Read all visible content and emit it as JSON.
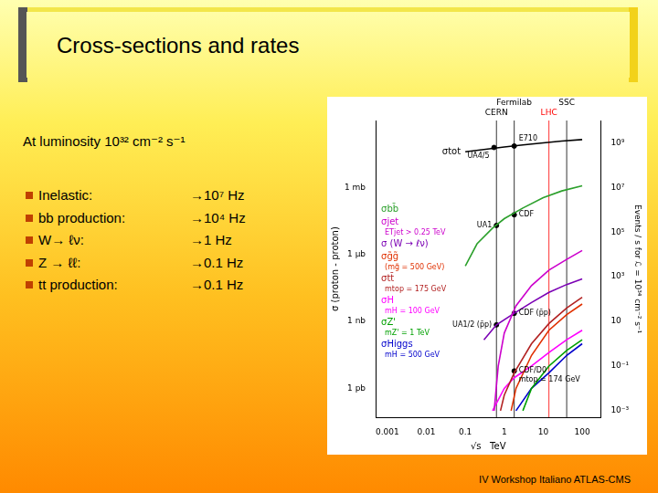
{
  "slide": {
    "title": "Cross-sections and rates",
    "intro": "At luminosity 10³² cm⁻² s⁻¹",
    "items": [
      {
        "label": "Inelastic:",
        "rate": "→10⁷ Hz"
      },
      {
        "label": "bb production:",
        "rate": "→10⁴ Hz"
      },
      {
        "label": "W→ ℓν:",
        "rate": "→1 Hz"
      },
      {
        "label": "Z → ℓℓ:",
        "rate": "→0.1 Hz"
      },
      {
        "label": "tt production:",
        "rate": "→0.1 Hz"
      }
    ],
    "footer": "IV Workshop Italiano ATLAS-CMS"
  },
  "chart_data": {
    "type": "line",
    "log": true,
    "grid": false,
    "x_label": "√s   TeV",
    "y_label": "σ (proton - proton)",
    "y2_label": "Events / s for ℒ = 10³⁴ cm⁻² s⁻¹",
    "xlim": [
      0.0005,
      300
    ],
    "xticks": [
      0.001,
      0.01,
      0.1,
      1,
      10,
      100
    ],
    "ylim": [
      5e-05,
      1000000000.0
    ],
    "yticks": [
      {
        "value": 1000000.0,
        "label": "1 mb"
      },
      {
        "value": 1000,
        "label": "1 μb"
      },
      {
        "value": 1,
        "label": "1 nb"
      },
      {
        "value": 0.001,
        "label": "1 pb"
      }
    ],
    "y2lim": [
      0.0005,
      10000000000.0
    ],
    "y2ticks": [
      {
        "value": 1000000000.0,
        "label": "10⁹"
      },
      {
        "value": 10000000.0,
        "label": "10⁷"
      },
      {
        "value": 100000.0,
        "label": "10⁵"
      },
      {
        "value": 1000,
        "label": "10³"
      },
      10,
      {
        "value": 0.1,
        "label": "10⁻¹"
      },
      {
        "value": 0.001,
        "label": "10⁻³"
      }
    ],
    "series": [
      {
        "name": "σtot",
        "color": "#000000",
        "x": [
          0.1,
          0.3,
          1,
          3,
          10,
          30,
          100
        ],
        "values": [
          40000000.0,
          50000000.0,
          65000000.0,
          80000000.0,
          100000000.0,
          120000000.0,
          140000000.0
        ]
      },
      {
        "name": "σbb̄",
        "color": "#2ca02c",
        "x": [
          0.1,
          0.2,
          0.5,
          1,
          3,
          10,
          30,
          100
        ],
        "values": [
          300,
          3000,
          15000,
          40000,
          120000,
          350000,
          700000,
          1200000
        ]
      },
      {
        "name": "σjet",
        "note": "ETjet > 0.25 TeV",
        "color": "#cc00cc",
        "x": [
          0.55,
          0.7,
          1,
          2,
          5,
          14,
          40,
          100
        ],
        "values": [
          0.0001,
          0.01,
          0.3,
          5,
          40,
          200,
          600,
          1500
        ]
      },
      {
        "name": "σ (W → ℓν)",
        "color": "#7b00b4",
        "x": [
          0.3,
          0.63,
          1.8,
          5,
          14,
          40,
          100
        ],
        "values": [
          0.15,
          0.7,
          2.3,
          7,
          20,
          45,
          80
        ]
      },
      {
        "name": "σg̃g̃",
        "note": "(mg̃ = 500 GeV)",
        "color": "#e03000",
        "x": [
          1.5,
          2,
          5,
          14,
          40,
          100
        ],
        "values": [
          0.0001,
          0.001,
          0.03,
          0.4,
          2,
          6
        ]
      },
      {
        "name": "σtt̄",
        "note": "mtop = 175 GeV",
        "color": "#b22222",
        "x": [
          0.8,
          1,
          1.8,
          5,
          14,
          40,
          100
        ],
        "values": [
          0.0001,
          0.0005,
          0.005,
          0.1,
          0.8,
          4,
          12
        ]
      },
      {
        "name": "σH",
        "note": "mH = 100 GeV",
        "color": "#ff00ff",
        "x": [
          0.5,
          1,
          1.8,
          5,
          14,
          40,
          100
        ],
        "values": [
          0.0001,
          0.001,
          0.003,
          0.01,
          0.04,
          0.15,
          0.4
        ]
      },
      {
        "name": "σZ'",
        "note": "mZ' = 1 TeV",
        "color": "#00a000",
        "x": [
          3,
          5,
          14,
          40,
          100
        ],
        "values": [
          0.0001,
          0.001,
          0.01,
          0.05,
          0.15
        ]
      },
      {
        "name": "σHiggs",
        "note": "mH = 500 GeV",
        "color": "#0000cc",
        "x": [
          2,
          5,
          14,
          40,
          100
        ],
        "values": [
          0.0001,
          0.001,
          0.005,
          0.03,
          0.1
        ]
      }
    ],
    "points": [
      {
        "name": "E710",
        "x": 1.8,
        "y": 72000000.0
      },
      {
        "name": "UA4/5",
        "x": 0.546,
        "y": 62000000.0
      },
      {
        "name": "UA1",
        "x": 0.63,
        "y": 20000
      },
      {
        "name": "CDF",
        "x": 1.8,
        "y": 60000
      },
      {
        "name": "CDF (p̄p)",
        "x": 1.8,
        "y": 2.3
      },
      {
        "name": "UA1/2 (p̄p)",
        "x": 0.63,
        "y": 0.7
      },
      {
        "name": "CDF/D0",
        "note": "mtop = 174 GeV",
        "x": 1.8,
        "y": 0.006
      }
    ],
    "accelerators": [
      {
        "name": "CERN",
        "x": 0.63,
        "color": "#000000"
      },
      {
        "name": "Fermilab",
        "x": 1.8,
        "color": "#000000"
      },
      {
        "name": "LHC",
        "x": 14,
        "color": "#ff0000"
      },
      {
        "name": "SSC",
        "x": 40,
        "color": "#000000"
      }
    ]
  }
}
